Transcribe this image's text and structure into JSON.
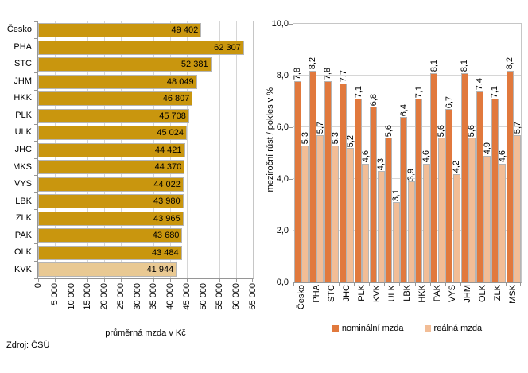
{
  "source_note": "Zdroj: ČSÚ",
  "colors": {
    "grid": "#D6D6D6",
    "axis": "#969696",
    "plot_border": "#C6C6C6",
    "bar_outline": "#B5B5B5",
    "text": "#000000"
  },
  "chart_data": [
    {
      "type": "bar",
      "orientation": "horizontal",
      "title": "",
      "xlabel": "průměrná mzda v Kč",
      "categories": [
        "Česko",
        "PHA",
        "STC",
        "JHM",
        "HKK",
        "PLK",
        "ULK",
        "JHC",
        "MKS",
        "VYS",
        "LBK",
        "ZLK",
        "PAK",
        "OLK",
        "KVK"
      ],
      "values": [
        49402,
        62307,
        52381,
        48049,
        46807,
        45708,
        45024,
        44421,
        44370,
        44022,
        43980,
        43965,
        43680,
        43484,
        41944
      ],
      "value_labels": [
        "49 402",
        "62 307",
        "52 381",
        "48 049",
        "46 807",
        "45 708",
        "45 024",
        "44 421",
        "44 370",
        "44 022",
        "43 980",
        "43 965",
        "43 680",
        "43 484",
        "41 944"
      ],
      "bar_color": "#C9960E",
      "highlight_last_bar": true,
      "highlight_color": "#E9C993",
      "xlim": [
        0,
        65000
      ],
      "xtick_values": [
        0,
        5000,
        10000,
        15000,
        20000,
        25000,
        30000,
        35000,
        40000,
        45000,
        50000,
        55000,
        60000,
        65000
      ],
      "xtick_labels": [
        "0",
        "5 000",
        "10 000",
        "15 000",
        "20 000",
        "25 000",
        "30 000",
        "35 000",
        "40 000",
        "45 000",
        "50 000",
        "55 000",
        "60 000",
        "65 000"
      ],
      "grid": true,
      "legend_position": "none"
    },
    {
      "type": "bar",
      "orientation": "vertical",
      "title": "",
      "ylabel": "meziroční růst / pokles v %",
      "categories": [
        "Česko",
        "PHA",
        "STC",
        "JHC",
        "PLK",
        "KVK",
        "ULK",
        "LBK",
        "HKK",
        "PAK",
        "VYS",
        "JHM",
        "OLK",
        "ZLK",
        "MSK"
      ],
      "series": [
        {
          "name": "nominální mzda",
          "color": "#E1793D",
          "values": [
            7.8,
            8.2,
            7.8,
            7.7,
            7.1,
            6.8,
            5.6,
            6.4,
            7.1,
            8.1,
            6.7,
            8.1,
            7.4,
            7.1,
            8.2
          ],
          "labels": [
            "7,8",
            "8,2",
            "7,8",
            "7,7",
            "7,1",
            "6,8",
            "5,6",
            "6,4",
            "7,1",
            "8,1",
            "6,7",
            "8,1",
            "7,4",
            "7,1",
            "8,2"
          ]
        },
        {
          "name": "reálná mzda",
          "color": "#F2BD96",
          "values": [
            5.3,
            5.7,
            5.3,
            5.2,
            4.6,
            4.3,
            3.1,
            3.9,
            4.6,
            5.6,
            4.2,
            5.6,
            4.9,
            4.6,
            5.7
          ],
          "labels": [
            "5,3",
            "5,7",
            "5,3",
            "5,2",
            "4,6",
            "4,3",
            "3,1",
            "3,9",
            "4,6",
            "5,6",
            "4,2",
            "5,6",
            "4,9",
            "4,6",
            "5,7"
          ]
        }
      ],
      "ylim": [
        0,
        10
      ],
      "ytick_values": [
        0,
        2,
        4,
        6,
        8,
        10
      ],
      "ytick_labels": [
        "0,0",
        "2,0",
        "4,0",
        "6,0",
        "8,0",
        "10,0"
      ],
      "grid": true,
      "legend_position": "bottom"
    }
  ]
}
